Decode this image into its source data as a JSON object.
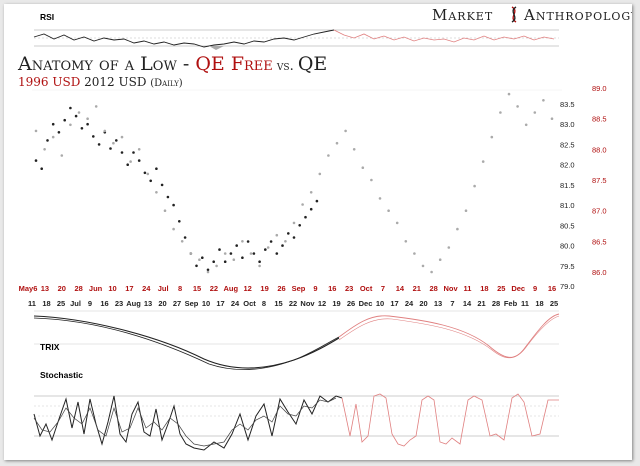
{
  "brand": {
    "left": "Market",
    "right": "Anthropology",
    "colors": {
      "dark": "#222222",
      "red": "#b01010",
      "pink": "#e08080",
      "grey": "#aaaaaa"
    }
  },
  "title": {
    "part1": "Anatomy of a Low - ",
    "part2": "QE Free",
    "part3": " vs. ",
    "part4": "QE"
  },
  "subtitle": {
    "part1": "1996 USD",
    "part2": " 2012 USD ",
    "part3": "(Daily)"
  },
  "panels": {
    "rsi": "RSI",
    "trix": "TRIX",
    "stochastic": "Stochastic"
  },
  "chart_data": {
    "type": "scatter",
    "title": "Anatomy of a Low - QE Free vs. QE",
    "axes": {
      "y_right_2012": {
        "ticks": [
          "83.5",
          "83.0",
          "82.5",
          "82.0",
          "81.5",
          "81.0",
          "80.5",
          "80.0",
          "79.5",
          "79.0"
        ],
        "ylim": [
          79.0,
          83.5
        ]
      },
      "y_right_1996": {
        "ticks": [
          "89.0",
          "88.5",
          "88.0",
          "87.5",
          "87.0",
          "86.5",
          "86.0"
        ],
        "ylim": [
          86.0,
          89.0
        ]
      },
      "x_top_1996": [
        "May6",
        "13",
        "20",
        "28",
        "Jun",
        "10",
        "17",
        "24",
        "Jul",
        "8",
        "15",
        "22",
        "Aug",
        "12",
        "19",
        "26",
        "Sep",
        "9",
        "16",
        "23",
        "Oct",
        "7",
        "14",
        "21",
        "28",
        "Nov",
        "11",
        "18",
        "25",
        "Dec",
        "9",
        "16"
      ],
      "x_bottom_2012": [
        "11",
        "18",
        "25",
        "Jul",
        "9",
        "16",
        "23",
        "Aug",
        "13",
        "20",
        "27",
        "Sep",
        "10",
        "17",
        "24",
        "Oct",
        "8",
        "15",
        "22",
        "Nov",
        "12",
        "19",
        "26",
        "Dec",
        "10",
        "17",
        "24",
        "20",
        "13",
        "7",
        "14",
        "21",
        "28",
        "Feb",
        "11",
        "18",
        "25"
      ]
    },
    "series": [
      {
        "name": "2012 USD",
        "color": "#222222",
        "x": [
          0,
          2,
          4,
          6,
          8,
          10,
          12,
          14,
          16,
          18,
          20,
          22,
          24,
          26,
          28,
          30,
          32,
          34,
          36,
          38,
          40,
          42,
          44,
          46,
          48,
          50,
          52,
          54,
          56,
          58,
          60,
          62,
          64,
          66,
          68,
          70,
          72,
          74,
          76,
          78,
          80,
          82,
          84,
          86,
          88,
          90,
          92,
          94,
          96,
          98,
          100,
          102,
          104,
          106,
          108,
          110,
          112,
          114,
          116,
          118,
          120
        ],
        "y": [
          82.1,
          81.9,
          82.6,
          83.0,
          82.8,
          83.1,
          83.4,
          83.2,
          82.9,
          83.0,
          82.7,
          82.5,
          82.8,
          82.4,
          82.6,
          82.3,
          82.0,
          82.3,
          82.1,
          81.8,
          81.6,
          81.9,
          81.5,
          81.2,
          81.0,
          80.6,
          80.2,
          79.8,
          79.5,
          79.7,
          79.4,
          79.6,
          79.9,
          79.6,
          79.8,
          80.0,
          79.7,
          80.1,
          79.8,
          79.6,
          79.9,
          80.1,
          79.8,
          80.0,
          80.3,
          80.2,
          80.5,
          80.7,
          80.9,
          81.1,
          null,
          null,
          null,
          null,
          null,
          null,
          null,
          null,
          null,
          null,
          null
        ]
      },
      {
        "name": "1996 USD",
        "color": "#aaaaaa",
        "x": [
          0,
          3,
          6,
          9,
          12,
          15,
          18,
          21,
          24,
          27,
          30,
          33,
          36,
          39,
          42,
          45,
          48,
          51,
          54,
          57,
          60,
          63,
          66,
          69,
          72,
          75,
          78,
          81,
          84,
          87,
          90,
          93,
          96,
          99,
          102,
          105,
          108,
          111,
          114,
          117,
          120,
          123,
          126,
          129,
          132,
          135,
          138,
          141,
          144,
          147,
          150,
          153,
          156,
          159,
          162,
          165,
          168,
          171,
          174,
          177,
          180
        ],
        "y": [
          88.3,
          88.0,
          88.2,
          87.9,
          88.4,
          88.6,
          88.5,
          88.7,
          88.3,
          88.1,
          88.2,
          87.8,
          88.0,
          87.6,
          87.3,
          87.0,
          86.7,
          86.5,
          86.3,
          86.2,
          86.0,
          86.1,
          86.3,
          86.2,
          86.5,
          86.3,
          86.1,
          86.4,
          86.6,
          86.5,
          86.8,
          87.1,
          87.3,
          87.6,
          87.9,
          88.1,
          88.3,
          88.0,
          87.7,
          87.5,
          87.2,
          87.0,
          86.8,
          86.5,
          86.3,
          86.1,
          86.0,
          86.2,
          86.4,
          86.7,
          87.0,
          87.4,
          87.8,
          88.2,
          88.6,
          88.9,
          88.7,
          88.4,
          88.6,
          88.8,
          88.5
        ]
      }
    ]
  }
}
